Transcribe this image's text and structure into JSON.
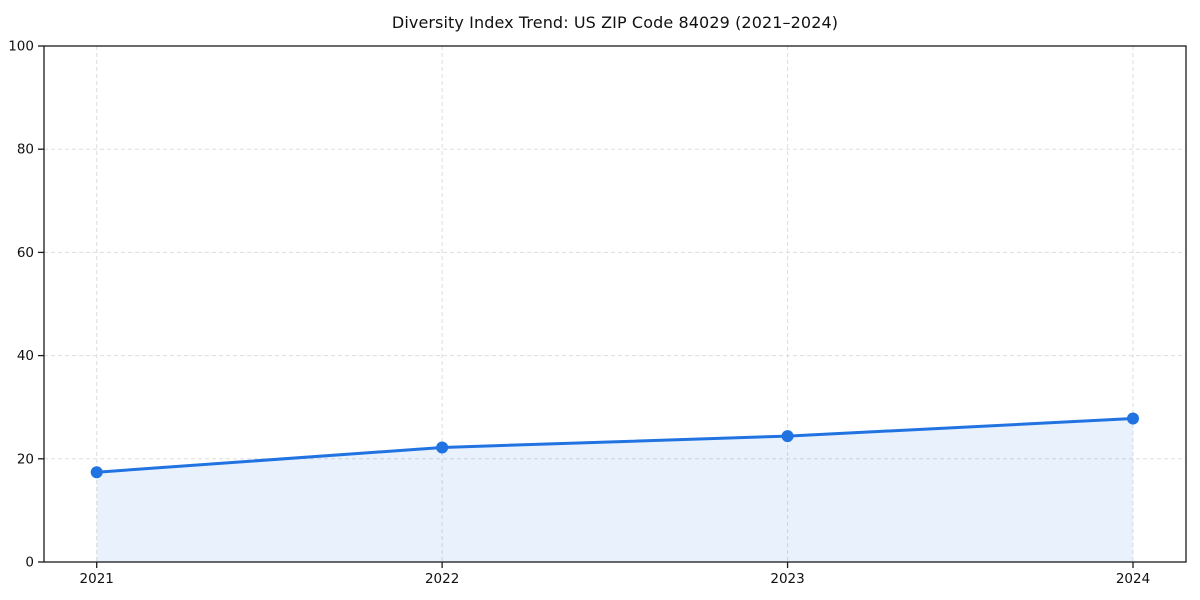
{
  "chart_data": {
    "type": "line",
    "title": "Diversity Index Trend: US ZIP Code 84029 (2021–2024)",
    "x": [
      "2021",
      "2022",
      "2023",
      "2024"
    ],
    "series": [
      {
        "name": "Diversity Index",
        "values": [
          17.4,
          22.2,
          24.4,
          27.8
        ]
      }
    ],
    "xlabel": "",
    "ylabel": "",
    "ylim": [
      0,
      100
    ],
    "yticks": [
      0,
      20,
      40,
      60,
      80,
      100
    ],
    "grid": true,
    "grid_style": "dashed",
    "legend": "none",
    "colors": {
      "line": "#2173e2",
      "marker": "#2173e2",
      "area_fill": "rgba(33, 115, 226, 0.10)",
      "gridline": "#dedede",
      "spine": "#1a1a1a",
      "text": "#111111",
      "background": "#ffffff"
    }
  }
}
